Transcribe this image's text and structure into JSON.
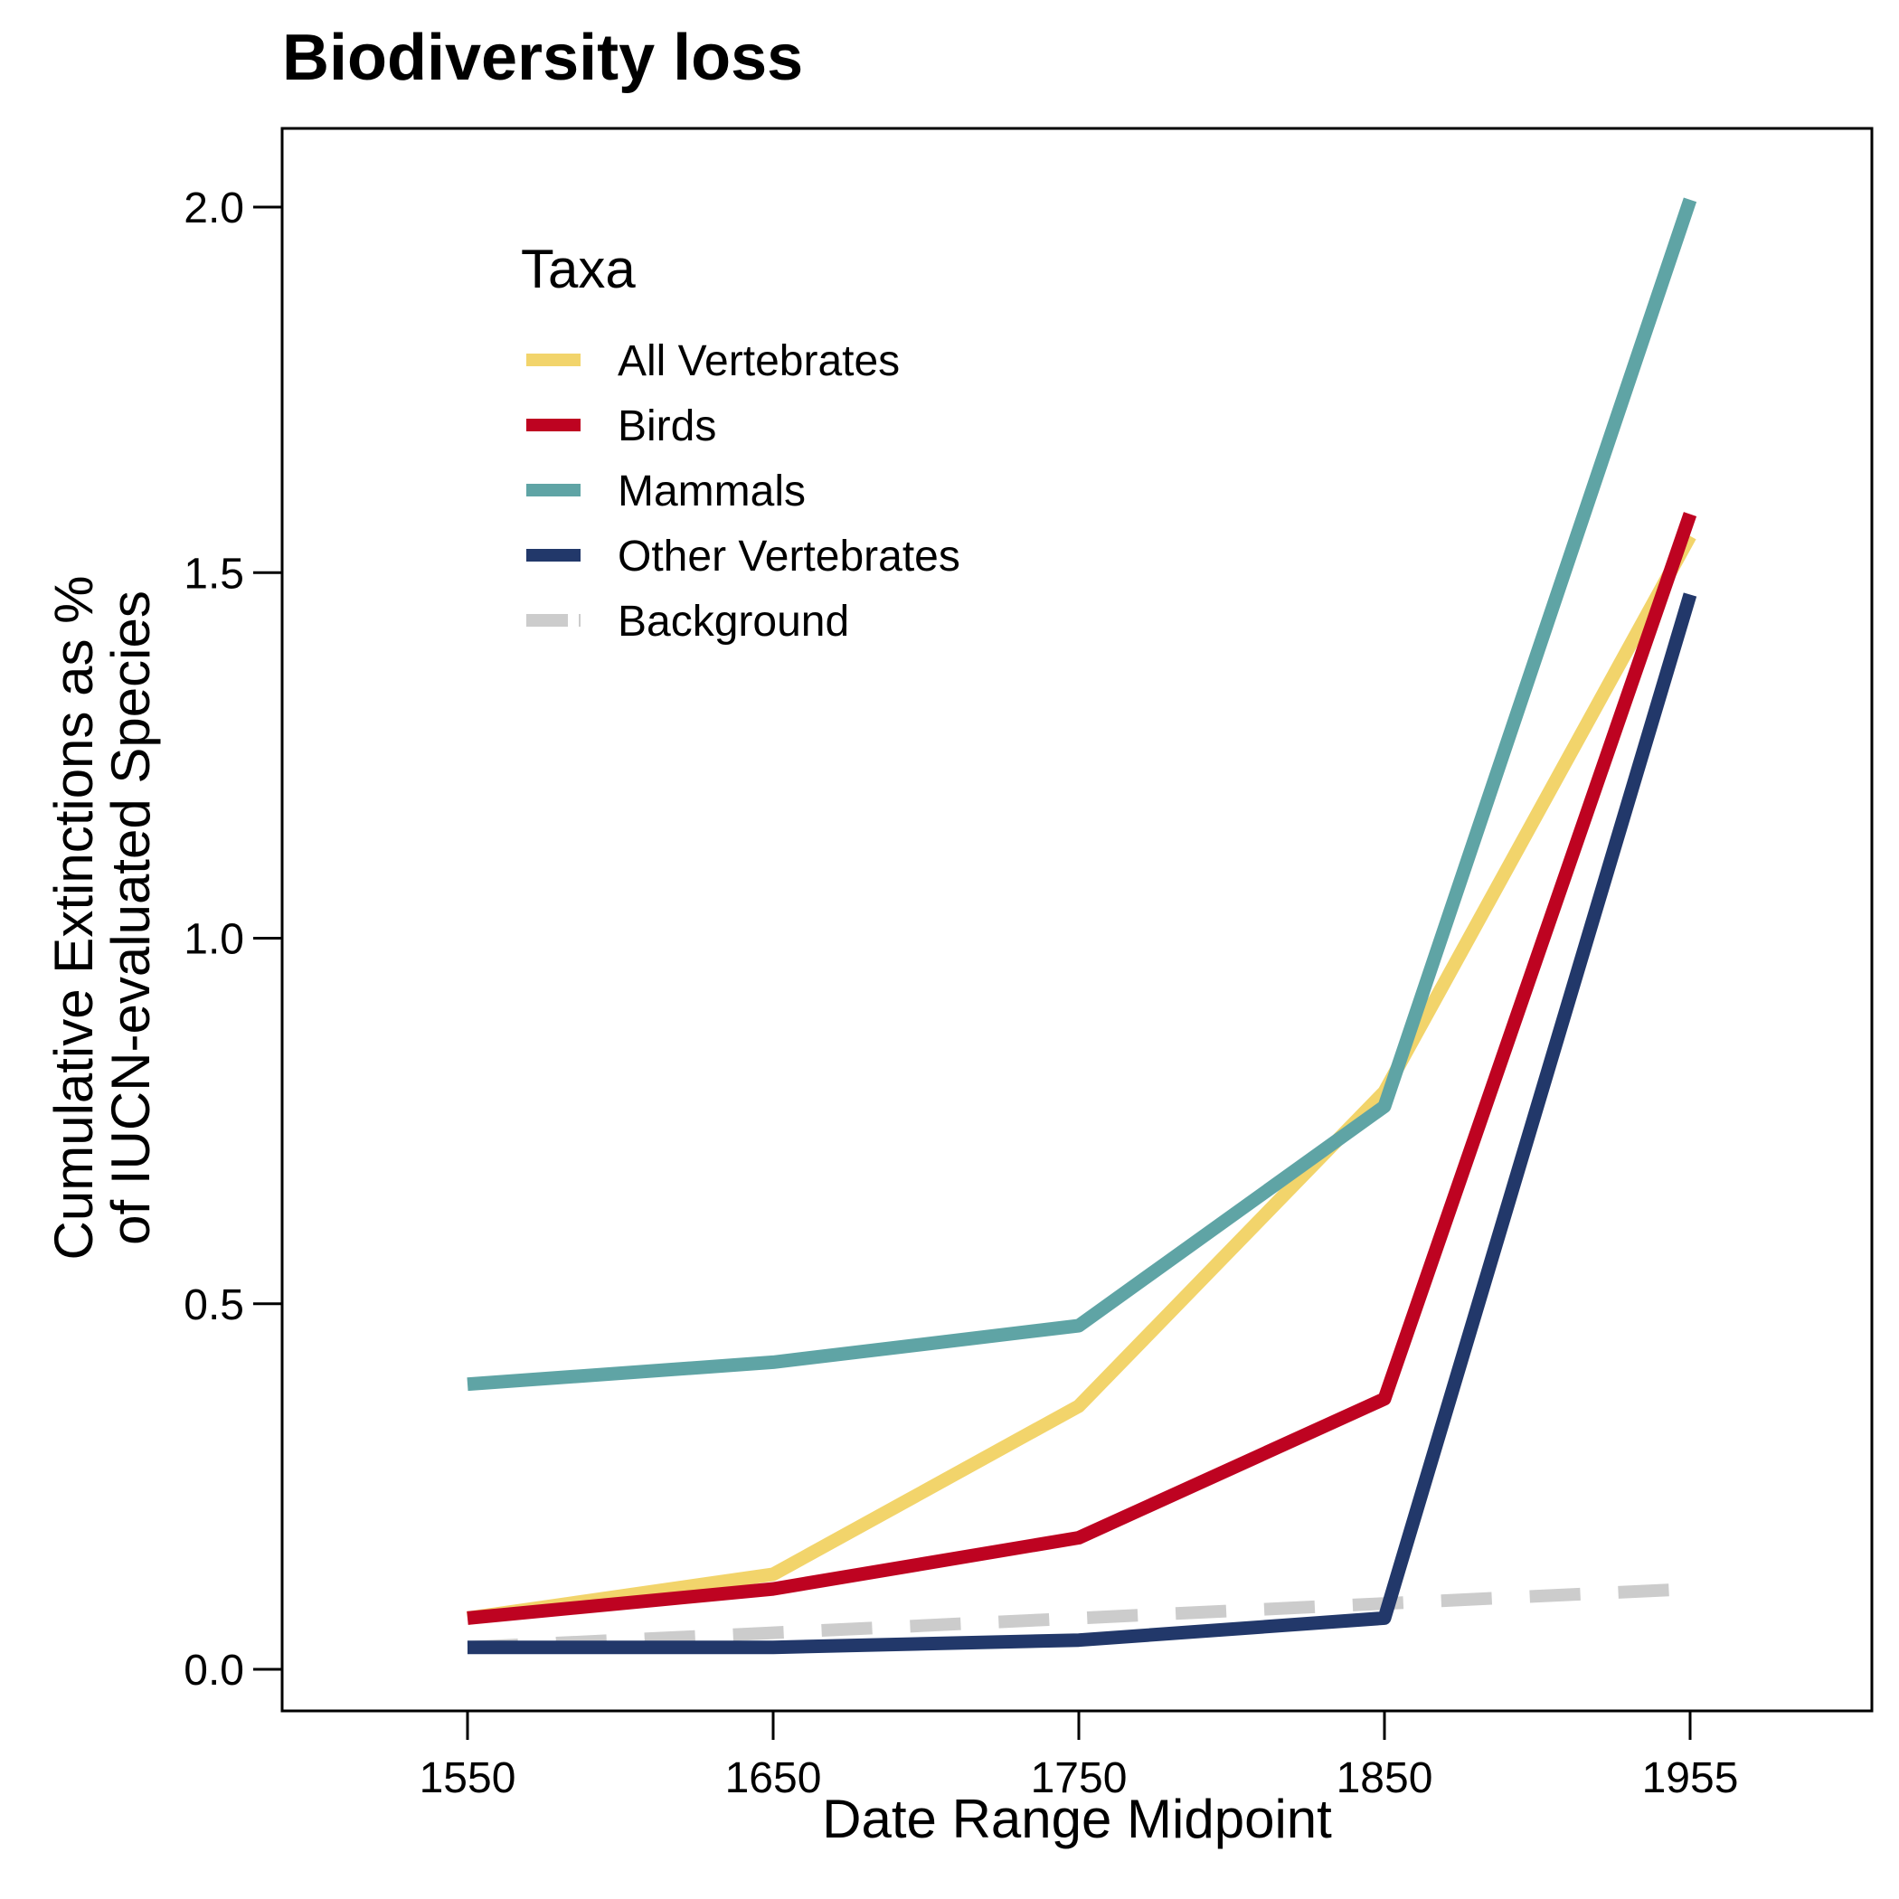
{
  "chart_data": {
    "type": "line",
    "title": "Biodiversity loss",
    "xlabel": "Date Range Midpoint",
    "ylabel": [
      "Cumulative Extinctions as %",
      "of IUCN-evaluated Species"
    ],
    "x": [
      1550,
      1650,
      1750,
      1850,
      1955
    ],
    "x_tick_labels": [
      "1550",
      "1650",
      "1750",
      "1850",
      "1955"
    ],
    "xlim": [
      1490,
      2010
    ],
    "y_ticks": [
      0.0,
      0.5,
      1.0,
      1.5,
      2.0
    ],
    "y_tick_labels": [
      "0.0",
      "0.5",
      "1.0",
      "1.5",
      "2.0"
    ],
    "ylim": [
      -0.07,
      2.11
    ],
    "grid": false,
    "legend": {
      "title": "Taxa",
      "position": "top-left"
    },
    "series": [
      {
        "name": "All Vertebrates",
        "color": "#F2D46B",
        "dashed": false,
        "values": [
          0.07,
          0.13,
          0.36,
          0.79,
          1.55
        ]
      },
      {
        "name": "Birds",
        "color": "#BE0321",
        "dashed": false,
        "values": [
          0.07,
          0.11,
          0.18,
          0.37,
          1.58
        ]
      },
      {
        "name": "Mammals",
        "color": "#5FA4A5",
        "dashed": false,
        "values": [
          0.39,
          0.42,
          0.47,
          0.77,
          2.01
        ]
      },
      {
        "name": "Other Vertebrates",
        "color": "#22386A",
        "dashed": false,
        "values": [
          0.03,
          0.03,
          0.04,
          0.07,
          1.47
        ]
      },
      {
        "name": "Background",
        "color": "#CCCCCC",
        "dashed": true,
        "values": [
          0.03,
          0.05,
          0.07,
          0.09,
          0.11
        ]
      }
    ]
  }
}
